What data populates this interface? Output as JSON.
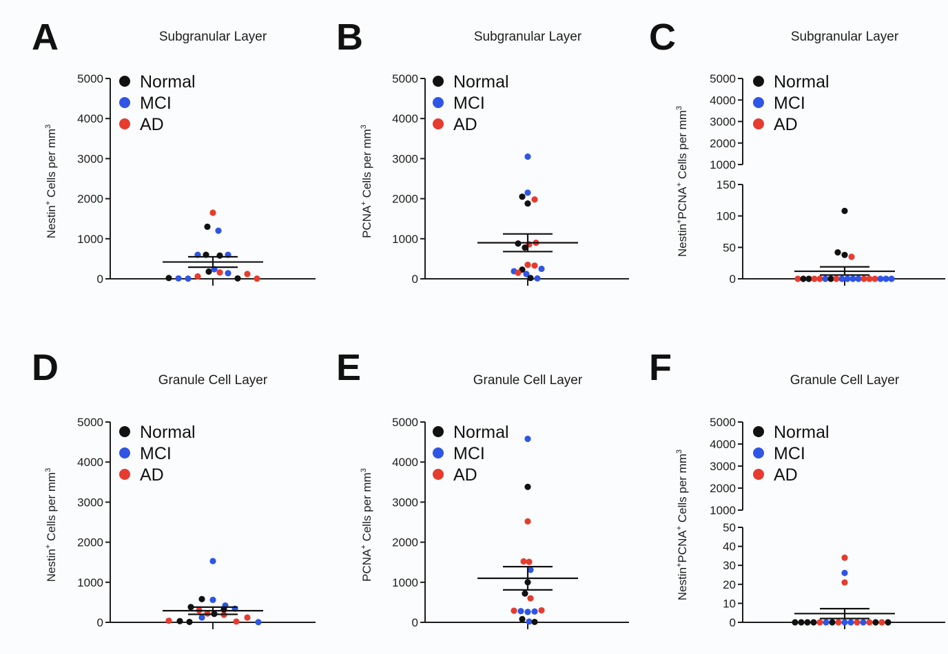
{
  "colors": {
    "Normal": "#111111",
    "MCI": "#2f55e4",
    "AD": "#e63b2e",
    "axis": "#1c1c1c"
  },
  "legend": [
    "Normal",
    "MCI",
    "AD"
  ],
  "chart_data": [
    {
      "panel": "A",
      "title": "Subgranular Layer",
      "type": "scatter",
      "ylabel": "Nestin+ Cells per mm3",
      "ylim": [
        0,
        5000
      ],
      "yticks": [
        0,
        1000,
        2000,
        3000,
        4000,
        5000
      ],
      "mean": 420,
      "sem": [
        290,
        550
      ],
      "points": [
        {
          "group": "Normal",
          "y": 20,
          "dx": -64
        },
        {
          "group": "MCI",
          "y": 10,
          "dx": -50
        },
        {
          "group": "MCI",
          "y": 5,
          "dx": -36
        },
        {
          "group": "AD",
          "y": 60,
          "dx": -22
        },
        {
          "group": "MCI",
          "y": 600,
          "dx": -22
        },
        {
          "group": "Normal",
          "y": 600,
          "dx": -10
        },
        {
          "group": "Normal",
          "y": 1300,
          "dx": -8
        },
        {
          "group": "Normal",
          "y": 180,
          "dx": -6
        },
        {
          "group": "AD",
          "y": 1650,
          "dx": 0
        },
        {
          "group": "MCI",
          "y": 240,
          "dx": 2
        },
        {
          "group": "AD",
          "y": 160,
          "dx": 10
        },
        {
          "group": "Normal",
          "y": 580,
          "dx": 10
        },
        {
          "group": "MCI",
          "y": 1200,
          "dx": 8
        },
        {
          "group": "MCI",
          "y": 600,
          "dx": 22
        },
        {
          "group": "MCI",
          "y": 140,
          "dx": 22
        },
        {
          "group": "Normal",
          "y": 10,
          "dx": 36
        },
        {
          "group": "AD",
          "y": 120,
          "dx": 50
        },
        {
          "group": "AD",
          "y": 5,
          "dx": 64
        }
      ]
    },
    {
      "panel": "B",
      "title": "Subgranular Layer",
      "type": "scatter",
      "ylabel": "PCNA+ Cells per mm3",
      "ylim": [
        0,
        5000
      ],
      "yticks": [
        0,
        1000,
        2000,
        3000,
        4000,
        5000
      ],
      "mean": 900,
      "sem": [
        680,
        1120
      ],
      "points": [
        {
          "group": "MCI",
          "y": 3050,
          "dx": 0
        },
        {
          "group": "MCI",
          "y": 2150,
          "dx": 0
        },
        {
          "group": "Normal",
          "y": 2050,
          "dx": -8
        },
        {
          "group": "AD",
          "y": 1980,
          "dx": 10
        },
        {
          "group": "Normal",
          "y": 1880,
          "dx": 0
        },
        {
          "group": "AD",
          "y": 900,
          "dx": 12
        },
        {
          "group": "Normal",
          "y": 880,
          "dx": -14
        },
        {
          "group": "AD",
          "y": 860,
          "dx": 2
        },
        {
          "group": "Normal",
          "y": 780,
          "dx": -4
        },
        {
          "group": "AD",
          "y": 350,
          "dx": 0
        },
        {
          "group": "AD",
          "y": 330,
          "dx": 10
        },
        {
          "group": "MCI",
          "y": 250,
          "dx": 20
        },
        {
          "group": "Normal",
          "y": 230,
          "dx": -8
        },
        {
          "group": "MCI",
          "y": 190,
          "dx": -20
        },
        {
          "group": "AD",
          "y": 150,
          "dx": -14
        },
        {
          "group": "MCI",
          "y": 120,
          "dx": -2
        },
        {
          "group": "Normal",
          "y": 20,
          "dx": 4
        },
        {
          "group": "MCI",
          "y": 10,
          "dx": 14
        }
      ]
    },
    {
      "panel": "C",
      "title": "Subgranular Layer",
      "type": "scatter",
      "ylabel": "Nestin+PCNA+ Cells per mm3",
      "broken_axis": true,
      "ylim_lower": [
        0,
        150
      ],
      "yticks_lower": [
        0,
        50,
        100,
        150
      ],
      "ylim_upper": [
        1000,
        5000
      ],
      "yticks_upper": [
        1000,
        2000,
        3000,
        4000,
        5000
      ],
      "mean": 12,
      "sem": [
        6,
        19
      ],
      "points": [
        {
          "group": "Normal",
          "y": 108,
          "dx": 0
        },
        {
          "group": "Normal",
          "y": 42,
          "dx": -10
        },
        {
          "group": "Normal",
          "y": 38,
          "dx": 0
        },
        {
          "group": "AD",
          "y": 35,
          "dx": 10
        },
        {
          "group": "AD",
          "y": 0,
          "dx": -68
        },
        {
          "group": "Normal",
          "y": 0,
          "dx": -60
        },
        {
          "group": "Normal",
          "y": 0,
          "dx": -52
        },
        {
          "group": "AD",
          "y": 0,
          "dx": -44
        },
        {
          "group": "AD",
          "y": 0,
          "dx": -36
        },
        {
          "group": "MCI",
          "y": 0,
          "dx": -28
        },
        {
          "group": "Normal",
          "y": 0,
          "dx": -20
        },
        {
          "group": "AD",
          "y": 0,
          "dx": -12
        },
        {
          "group": "MCI",
          "y": 0,
          "dx": -4
        },
        {
          "group": "MCI",
          "y": 0,
          "dx": 4
        },
        {
          "group": "MCI",
          "y": 0,
          "dx": 12
        },
        {
          "group": "MCI",
          "y": 0,
          "dx": 20
        },
        {
          "group": "AD",
          "y": 0,
          "dx": 28
        },
        {
          "group": "AD",
          "y": 0,
          "dx": 36
        },
        {
          "group": "AD",
          "y": 0,
          "dx": 44
        },
        {
          "group": "MCI",
          "y": 0,
          "dx": 52
        },
        {
          "group": "MCI",
          "y": 0,
          "dx": 60
        },
        {
          "group": "MCI",
          "y": 0,
          "dx": 68
        }
      ]
    },
    {
      "panel": "D",
      "title": "Granule Cell Layer",
      "type": "scatter",
      "ylabel": "Nestin+ Cells per mm3",
      "ylim": [
        0,
        5000
      ],
      "yticks": [
        0,
        1000,
        2000,
        3000,
        4000,
        5000
      ],
      "mean": 290,
      "sem": [
        200,
        380
      ],
      "points": [
        {
          "group": "AD",
          "y": 40,
          "dx": -64
        },
        {
          "group": "Normal",
          "y": 30,
          "dx": -48
        },
        {
          "group": "Normal",
          "y": 10,
          "dx": -34
        },
        {
          "group": "Normal",
          "y": 380,
          "dx": -32
        },
        {
          "group": "Normal",
          "y": 580,
          "dx": -16
        },
        {
          "group": "AD",
          "y": 300,
          "dx": -20
        },
        {
          "group": "MCI",
          "y": 120,
          "dx": -16
        },
        {
          "group": "AD",
          "y": 220,
          "dx": -8
        },
        {
          "group": "MCI",
          "y": 560,
          "dx": 0
        },
        {
          "group": "MCI",
          "y": 1530,
          "dx": 0
        },
        {
          "group": "Normal",
          "y": 210,
          "dx": 2
        },
        {
          "group": "AD",
          "y": 190,
          "dx": 16
        },
        {
          "group": "MCI",
          "y": 420,
          "dx": 18
        },
        {
          "group": "Normal",
          "y": 320,
          "dx": 16
        },
        {
          "group": "AD",
          "y": 20,
          "dx": 34
        },
        {
          "group": "MCI",
          "y": 340,
          "dx": 32
        },
        {
          "group": "AD",
          "y": 120,
          "dx": 50
        },
        {
          "group": "MCI",
          "y": 5,
          "dx": 66
        }
      ]
    },
    {
      "panel": "E",
      "title": "Granule Cell Layer",
      "type": "scatter",
      "ylabel": "PCNA+ Cells per mm3",
      "ylim": [
        0,
        5000
      ],
      "yticks": [
        0,
        1000,
        2000,
        3000,
        4000,
        5000
      ],
      "mean": 1100,
      "sem": [
        810,
        1390
      ],
      "points": [
        {
          "group": "MCI",
          "y": 4580,
          "dx": 0
        },
        {
          "group": "Normal",
          "y": 3380,
          "dx": 0
        },
        {
          "group": "AD",
          "y": 2520,
          "dx": 0
        },
        {
          "group": "AD",
          "y": 1520,
          "dx": -6
        },
        {
          "group": "AD",
          "y": 1510,
          "dx": 2
        },
        {
          "group": "MCI",
          "y": 1310,
          "dx": 4
        },
        {
          "group": "Normal",
          "y": 1000,
          "dx": 0
        },
        {
          "group": "Normal",
          "y": 720,
          "dx": -4
        },
        {
          "group": "AD",
          "y": 600,
          "dx": 4
        },
        {
          "group": "AD",
          "y": 290,
          "dx": -20
        },
        {
          "group": "MCI",
          "y": 280,
          "dx": -10
        },
        {
          "group": "AD",
          "y": 300,
          "dx": 20
        },
        {
          "group": "MCI",
          "y": 260,
          "dx": 0
        },
        {
          "group": "MCI",
          "y": 270,
          "dx": 10
        },
        {
          "group": "Normal",
          "y": 80,
          "dx": -8
        },
        {
          "group": "MCI",
          "y": 20,
          "dx": 2
        },
        {
          "group": "Normal",
          "y": 10,
          "dx": 10
        }
      ]
    },
    {
      "panel": "F",
      "title": "Granule Cell Layer",
      "type": "scatter",
      "ylabel": "Nestin+PCNA+ Cells per mm3",
      "broken_axis": true,
      "ylim_lower": [
        0,
        50
      ],
      "yticks_lower": [
        0,
        10,
        20,
        30,
        40,
        50
      ],
      "ylim_upper": [
        1000,
        5000
      ],
      "yticks_upper": [
        1000,
        2000,
        3000,
        4000,
        5000
      ],
      "mean": 4.6,
      "sem": [
        2,
        7.2
      ],
      "points": [
        {
          "group": "AD",
          "y": 34,
          "dx": 0
        },
        {
          "group": "MCI",
          "y": 26,
          "dx": 0
        },
        {
          "group": "AD",
          "y": 21,
          "dx": 0
        },
        {
          "group": "Normal",
          "y": 0,
          "dx": -72
        },
        {
          "group": "Normal",
          "y": 0,
          "dx": -63
        },
        {
          "group": "Normal",
          "y": 0,
          "dx": -54
        },
        {
          "group": "Normal",
          "y": 0,
          "dx": -45
        },
        {
          "group": "AD",
          "y": 0,
          "dx": -36
        },
        {
          "group": "MCI",
          "y": 0,
          "dx": -27
        },
        {
          "group": "Normal",
          "y": 0,
          "dx": -18
        },
        {
          "group": "AD",
          "y": 0,
          "dx": -9
        },
        {
          "group": "MCI",
          "y": 0,
          "dx": 0
        },
        {
          "group": "MCI",
          "y": 0,
          "dx": 9
        },
        {
          "group": "AD",
          "y": 0,
          "dx": 18
        },
        {
          "group": "MCI",
          "y": 0,
          "dx": 27
        },
        {
          "group": "AD",
          "y": 0,
          "dx": 36
        },
        {
          "group": "Normal",
          "y": 0,
          "dx": 45
        },
        {
          "group": "AD",
          "y": 0,
          "dx": 54
        },
        {
          "group": "Normal",
          "y": 0,
          "dx": 63
        }
      ]
    }
  ]
}
